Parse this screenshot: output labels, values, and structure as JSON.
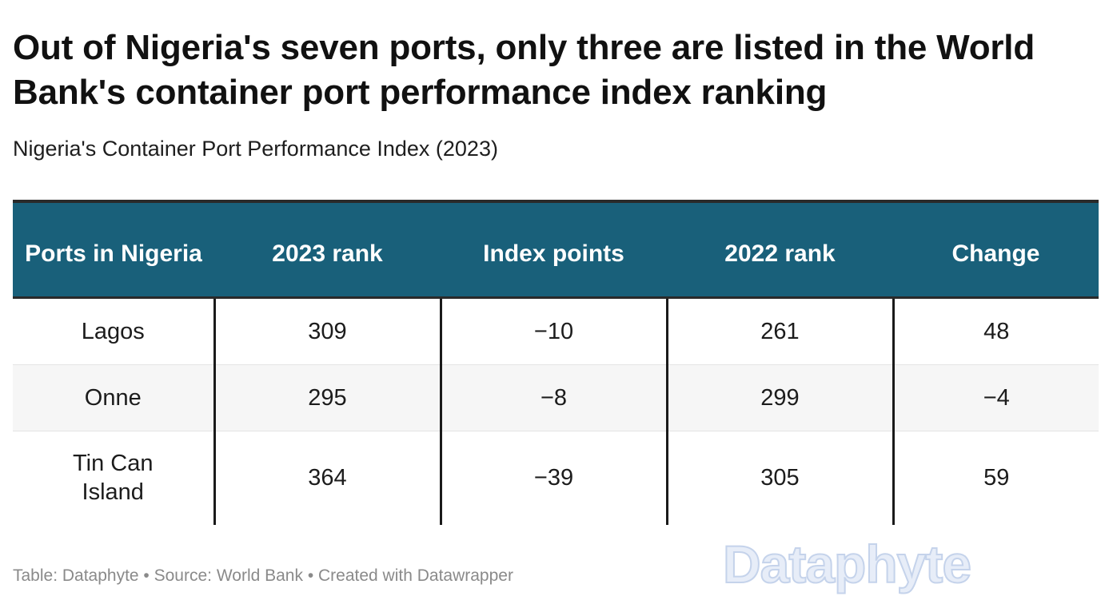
{
  "chart_data": {
    "type": "table",
    "title": "Out of Nigeria's seven ports, only three are listed in the World Bank's container port performance index ranking",
    "subtitle": "Nigeria's Container Port Performance Index (2023)",
    "columns": [
      "Ports in Nigeria",
      "2023 rank",
      "Index points",
      "2022 rank",
      "Change"
    ],
    "rows": [
      [
        "Lagos",
        "309",
        "−10",
        "261",
        "48"
      ],
      [
        "Onne",
        "295",
        "−8",
        "299",
        "−4"
      ],
      [
        "Tin Can Island",
        "364",
        "−39",
        "305",
        "59"
      ]
    ],
    "header_color": "#19607a"
  },
  "footer": {
    "text": "Table: Dataphyte • Source: World Bank • Created with Datawrapper"
  },
  "watermark": {
    "text": "Dataphyte"
  }
}
